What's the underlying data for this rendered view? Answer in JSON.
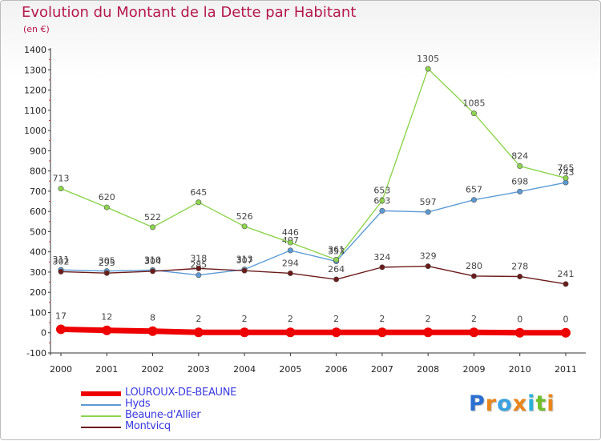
{
  "header": {
    "title": "Evolution du Montant de la Dette par Habitant",
    "unit": "(en €)"
  },
  "logo": {
    "text": "Proxiti",
    "letter_colors": [
      "#2a6fd1",
      "#e8861a",
      "#3aa2e0",
      "#e8861a",
      "#2ab0d8",
      "#6fbf2a",
      "#e8861a"
    ]
  },
  "chart_data": {
    "type": "line",
    "x": [
      "2000",
      "2001",
      "2002",
      "2003",
      "2004",
      "2005",
      "2006",
      "2007",
      "2008",
      "2009",
      "2010",
      "2011"
    ],
    "ylim": [
      -100,
      1400
    ],
    "yticks": [
      "-100",
      "0",
      "100",
      "200",
      "300",
      "400",
      "500",
      "600",
      "700",
      "800",
      "900",
      "1000",
      "1100",
      "1200",
      "1300",
      "1400"
    ],
    "grid": false,
    "legend_position": "bottom-left",
    "series": [
      {
        "name": "Hyds",
        "color": "#5b9bd5",
        "values": [
          311,
          305,
          310,
          285,
          313,
          407,
          353,
          603,
          597,
          657,
          698,
          743
        ],
        "labels": [
          "311",
          "305",
          "310",
          "285",
          "313",
          "407",
          "353",
          "603",
          "597",
          "657",
          "698",
          "743"
        ]
      },
      {
        "name": "Beaune-d'Allier",
        "color": "#8ed44e",
        "values": [
          713,
          620,
          522,
          645,
          526,
          446,
          361,
          653,
          1305,
          1085,
          824,
          765
        ],
        "labels": [
          "713",
          "620",
          "522",
          "645",
          "526",
          "446",
          "361",
          "653",
          "1305",
          "1085",
          "824",
          "765"
        ]
      },
      {
        "name": "Montvicq",
        "color": "#6b1a1a",
        "values": [
          302,
          295,
          304,
          318,
          307,
          294,
          264,
          324,
          329,
          280,
          278,
          241
        ],
        "labels": [
          "302",
          "295",
          "304",
          "318",
          "307",
          "294",
          "264",
          "324",
          "329",
          "280",
          "278",
          "241"
        ]
      },
      {
        "name": "LOUROUX-DE-BEAUNE",
        "color": "#ee0000",
        "values": [
          17,
          12,
          8,
          2,
          2,
          2,
          2,
          2,
          2,
          2,
          0,
          0
        ],
        "labels": [
          "17",
          "12",
          "8",
          "2",
          "2",
          "2",
          "2",
          "2",
          "2",
          "2",
          "0",
          "0"
        ]
      }
    ],
    "legend": [
      "LOUROUX-DE-BEAUNE",
      "Hyds",
      "Beaune-d'Allier",
      "Montvicq"
    ]
  }
}
